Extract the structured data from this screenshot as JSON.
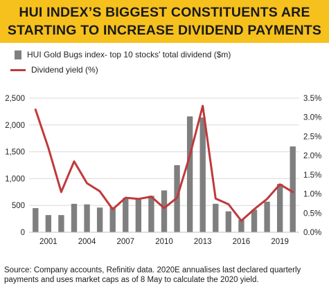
{
  "header": {
    "title_line1": "HUI INDEX’S BIGGEST CONSTITUENTS ARE",
    "title_line2": "STARTING TO INCREASE DIVIDEND PAYMENTS"
  },
  "footer": {
    "source": "Source: Company accounts, Refinitiv data. 2020E annualises last declared quarterly payments and uses market caps as of 8 May to calculate the 2020 yield."
  },
  "colors": {
    "banner": "#f6c11d",
    "bars": "#7f7f7f",
    "line": "#c0393b"
  },
  "chart_data": {
    "type": "bar",
    "x": [
      2000,
      2001,
      2002,
      2003,
      2004,
      2005,
      2006,
      2007,
      2008,
      2009,
      2010,
      2011,
      2012,
      2013,
      2014,
      2015,
      2016,
      2017,
      2018,
      2019,
      2020
    ],
    "x_tick_labels": [
      "2001",
      "2004",
      "2007",
      "2010",
      "2013",
      "2016",
      "2019"
    ],
    "x_tick_values": [
      2001,
      2004,
      2007,
      2010,
      2013,
      2016,
      2019
    ],
    "ylim": [
      0,
      2500
    ],
    "y_ticks": [
      "0",
      "500",
      "1,000",
      "1,500",
      "2,000",
      "2,500"
    ],
    "y2lim": [
      0,
      3.5
    ],
    "y2_ticks": [
      "0.0%",
      "0.5%",
      "1.0%",
      "1.5%",
      "2.0%",
      "2.5%",
      "3.0%",
      "3.5%"
    ],
    "legend_position": "top-left",
    "series": [
      {
        "name": "HUI Gold Bugs index- top 10 stocks' total dividend ($m)",
        "type": "bar",
        "axis": "left",
        "values": [
          450,
          320,
          320,
          530,
          520,
          460,
          470,
          640,
          620,
          680,
          780,
          1250,
          2160,
          2140,
          530,
          390,
          230,
          420,
          570,
          900,
          1600
        ]
      },
      {
        "name": "Dividend yield (%)",
        "type": "line",
        "axis": "right",
        "values": [
          3.2,
          2.2,
          1.05,
          1.85,
          1.28,
          1.07,
          0.6,
          0.9,
          0.87,
          0.93,
          0.63,
          0.9,
          2.0,
          3.3,
          0.88,
          0.73,
          0.3,
          0.6,
          0.87,
          1.25,
          1.05
        ]
      }
    ]
  }
}
